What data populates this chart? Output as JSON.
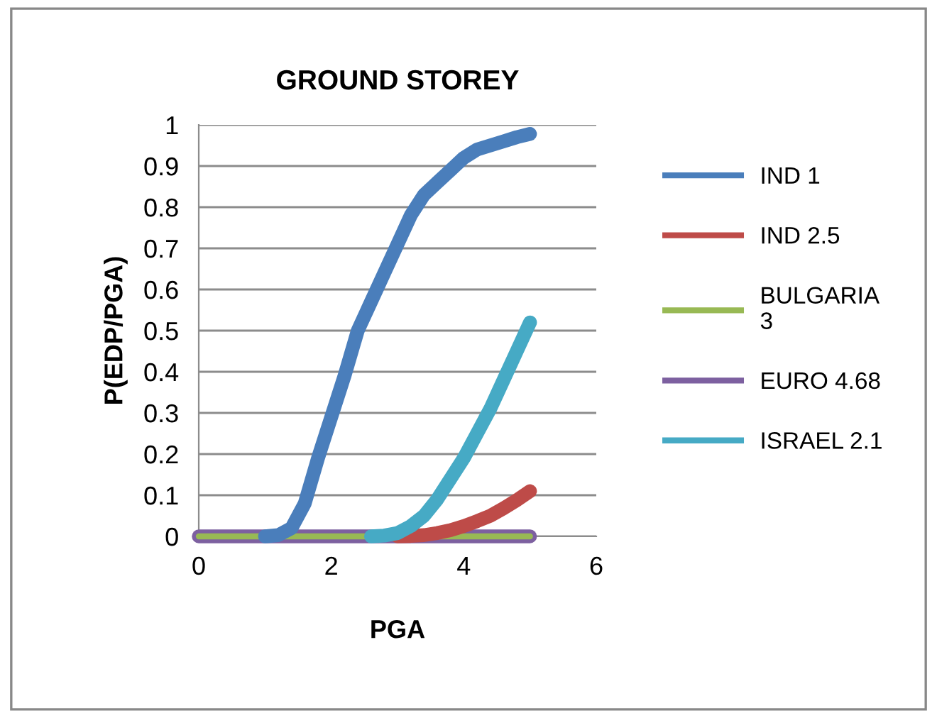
{
  "chart_data": {
    "type": "line",
    "title": "GROUND STOREY",
    "xlabel": "PGA",
    "ylabel": "P(EDP/PGA)",
    "xlim": [
      0,
      6
    ],
    "xticks": [
      0,
      2,
      4,
      6
    ],
    "ylim": [
      0,
      1
    ],
    "yticks": [
      0,
      0.1,
      0.2,
      0.3,
      0.4,
      0.5,
      0.6,
      0.7,
      0.8,
      0.9,
      1
    ],
    "grid": "y",
    "legend": "right",
    "marker": "none",
    "line_style": "solid",
    "series": [
      {
        "name": "IND 1",
        "color": "#4a7ebb",
        "x": [
          1,
          1.2,
          1.4,
          1.6,
          1.8,
          2.0,
          2.2,
          2.4,
          2.6,
          2.8,
          3.0,
          3.2,
          3.4,
          3.6,
          3.8,
          4.0,
          4.2,
          4.4,
          4.6,
          4.8,
          5
        ],
        "values": [
          0,
          0.003,
          0.02,
          0.08,
          0.19,
          0.29,
          0.39,
          0.5,
          0.57,
          0.64,
          0.71,
          0.78,
          0.83,
          0.86,
          0.89,
          0.92,
          0.94,
          0.95,
          0.96,
          0.97,
          0.978
        ]
      },
      {
        "name": "IND 2.5",
        "color": "#be4b48",
        "x": [
          3,
          3.2,
          3.4,
          3.6,
          3.8,
          4.0,
          4.2,
          4.4,
          4.6,
          4.8,
          5
        ],
        "values": [
          0,
          0.001,
          0.003,
          0.008,
          0.015,
          0.025,
          0.037,
          0.05,
          0.068,
          0.088,
          0.11
        ]
      },
      {
        "name": "BULGARIA 3",
        "color": "#98b954",
        "x": [
          0,
          1,
          2,
          3,
          4,
          5
        ],
        "values": [
          0,
          0,
          0,
          0,
          0,
          0
        ]
      },
      {
        "name": "EURO 4.68",
        "color": "#7d60a0",
        "x": [
          0,
          1,
          2,
          3,
          4,
          5
        ],
        "values": [
          0,
          0,
          0,
          0,
          0,
          0
        ]
      },
      {
        "name": "ISRAEL 2.1",
        "color": "#46aac5",
        "x": [
          2.6,
          2.8,
          3.0,
          3.2,
          3.4,
          3.6,
          3.8,
          4.0,
          4.2,
          4.4,
          4.6,
          4.8,
          5
        ],
        "values": [
          0,
          0.002,
          0.008,
          0.025,
          0.05,
          0.09,
          0.14,
          0.19,
          0.25,
          0.31,
          0.38,
          0.45,
          0.52
        ]
      }
    ]
  }
}
